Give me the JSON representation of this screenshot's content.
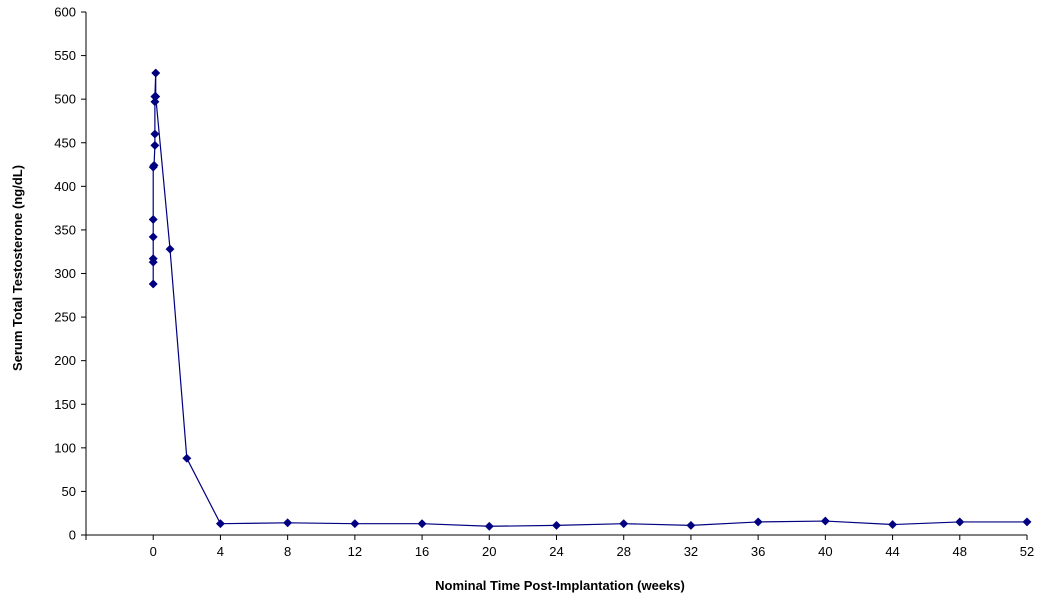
{
  "chart_data": {
    "type": "line",
    "title": "",
    "xlabel": "Nominal Time Post-Implantation (weeks)",
    "ylabel": "Serum Total Testosterone (ng/dL)",
    "xlim": [
      -4,
      52
    ],
    "ylim": [
      0,
      600
    ],
    "x_ticks": [
      0,
      4,
      8,
      12,
      16,
      20,
      24,
      28,
      32,
      36,
      40,
      44,
      48,
      52
    ],
    "y_ticks": [
      0,
      50,
      100,
      150,
      200,
      250,
      300,
      350,
      400,
      450,
      500,
      550,
      600
    ],
    "grid": false,
    "legend": "none",
    "series": [
      {
        "color": "#000080",
        "marker": "diamond",
        "x": [
          0,
          0,
          0,
          0,
          0,
          0,
          0.05,
          0.1,
          0.1,
          0.1,
          0.1,
          0.15,
          0.15,
          1,
          2,
          4,
          8,
          12,
          16,
          20,
          24,
          28,
          32,
          36,
          40,
          44,
          48,
          52
        ],
        "y": [
          288,
          313,
          317,
          342,
          362,
          422,
          424,
          447,
          460,
          497,
          503,
          530,
          503,
          328,
          88,
          13,
          14,
          13,
          13,
          10,
          11,
          13,
          11,
          15,
          16,
          12,
          15,
          15
        ]
      }
    ]
  }
}
